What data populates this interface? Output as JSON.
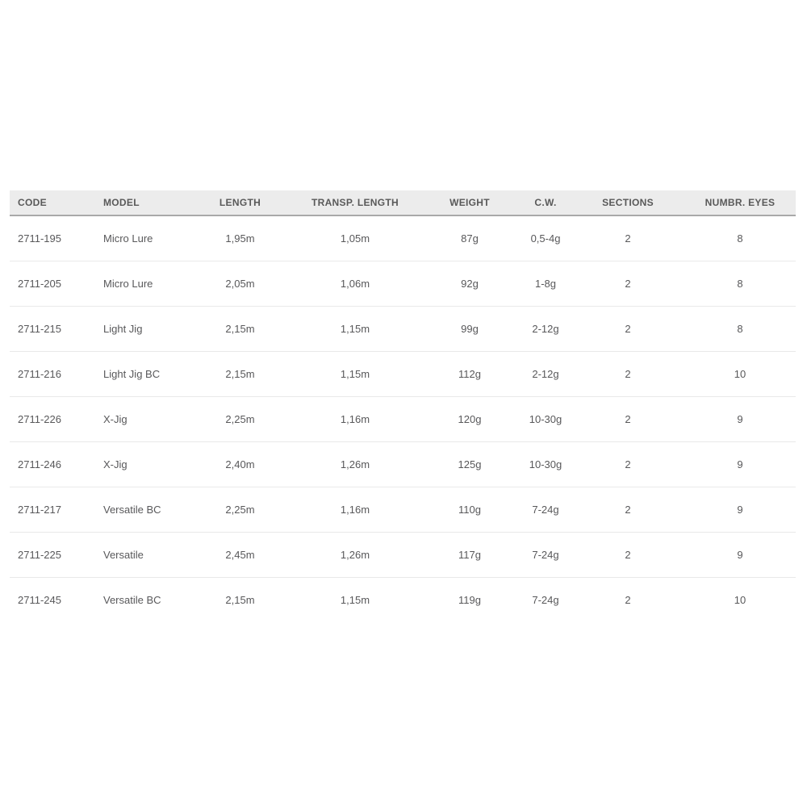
{
  "table": {
    "columns": [
      {
        "label": "CODE",
        "align": "left"
      },
      {
        "label": "MODEL",
        "align": "left"
      },
      {
        "label": "LENGTH",
        "align": "center"
      },
      {
        "label": "TRANSP. LENGTH",
        "align": "center"
      },
      {
        "label": "WEIGHT",
        "align": "center"
      },
      {
        "label": "C.W.",
        "align": "center"
      },
      {
        "label": "SECTIONS",
        "align": "center"
      },
      {
        "label": "NUMBR. EYES",
        "align": "center"
      }
    ],
    "rows": [
      [
        "2711-195",
        "Micro Lure",
        "1,95m",
        "1,05m",
        "87g",
        "0,5-4g",
        "2",
        "8"
      ],
      [
        "2711-205",
        "Micro Lure",
        "2,05m",
        "1,06m",
        "92g",
        "1-8g",
        "2",
        "8"
      ],
      [
        "2711-215",
        "Light Jig",
        "2,15m",
        "1,15m",
        "99g",
        "2-12g",
        "2",
        "8"
      ],
      [
        "2711-216",
        "Light Jig BC",
        "2,15m",
        "1,15m",
        "112g",
        "2-12g",
        "2",
        "10"
      ],
      [
        "2711-226",
        "X-Jig",
        "2,25m",
        "1,16m",
        "120g",
        "10-30g",
        "2",
        "9"
      ],
      [
        "2711-246",
        "X-Jig",
        "2,40m",
        "1,26m",
        "125g",
        "10-30g",
        "2",
        "9"
      ],
      [
        "2711-217",
        "Versatile BC",
        "2,25m",
        "1,16m",
        "110g",
        "7-24g",
        "2",
        "9"
      ],
      [
        "2711-225",
        "Versatile",
        "2,45m",
        "1,26m",
        "117g",
        "7-24g",
        "2",
        "9"
      ],
      [
        "2711-245",
        "Versatile BC",
        "2,15m",
        "1,15m",
        "119g",
        "7-24g",
        "2",
        "10"
      ]
    ]
  },
  "colors": {
    "header_bg": "#ececec",
    "header_border": "#a9a9a9",
    "row_separator": "#e9e9e9",
    "header_text": "#595959",
    "body_text": "#58585a",
    "page_bg": "#ffffff"
  }
}
